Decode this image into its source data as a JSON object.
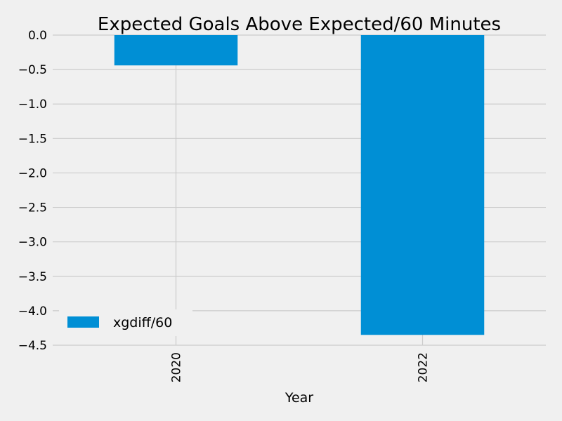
{
  "chart_data": {
    "type": "bar",
    "title": "Expected Goals Above Expected/60 Minutes",
    "xlabel": "Year",
    "ylabel": "",
    "categories": [
      "2020",
      "2022"
    ],
    "series": [
      {
        "name": "xgdiff/60",
        "values": [
          -0.44,
          -4.35
        ]
      }
    ],
    "ylim": [
      -4.5,
      0.0
    ],
    "yticks": [
      0.0,
      -0.5,
      -1.0,
      -1.5,
      -2.0,
      -2.5,
      -3.0,
      -3.5,
      -4.0,
      -4.5
    ],
    "ytick_labels": [
      "0.0",
      "−0.5",
      "−1.0",
      "−1.5",
      "−2.0",
      "−2.5",
      "−3.0",
      "−3.5",
      "−4.0",
      "−4.5"
    ],
    "grid": true,
    "legend_position": "lower-left",
    "bar_color": "#008fd5",
    "grid_color": "#cbcbcb",
    "background_color": "#f0f0f0"
  }
}
